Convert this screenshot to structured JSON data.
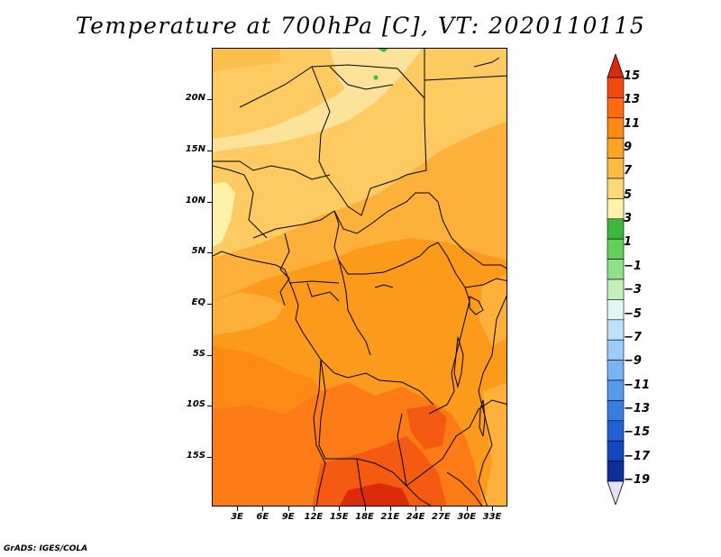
{
  "title": "Temperature at 700hPa [C], VT: 2020110115",
  "credit": "GrADS: IGES/COLA",
  "map": {
    "y_ticks": [
      "20N",
      "15N",
      "10N",
      "5N",
      "EQ",
      "5S",
      "10S",
      "15S"
    ],
    "x_ticks": [
      "3E",
      "6E",
      "9E",
      "12E",
      "15E",
      "18E",
      "21E",
      "24E",
      "27E",
      "30E",
      "33E"
    ]
  },
  "colorbar": {
    "labels": [
      "15",
      "13",
      "11",
      "9",
      "7",
      "5",
      "3",
      "1",
      "−1",
      "−3",
      "−5",
      "−7",
      "−9",
      "−11",
      "−13",
      "−15",
      "−17",
      "−19"
    ],
    "colors": [
      "#dc2b0c",
      "#f2490f",
      "#fc6b12",
      "#fc8a14",
      "#fca425",
      "#fdbb46",
      "#fdda78",
      "#fef2ab",
      "#3cb83c",
      "#62cf5b",
      "#8fe28a",
      "#c2f0b8",
      "#e2f7f4",
      "#bfe2fb",
      "#9ccdf8",
      "#78b4f2",
      "#5799ea",
      "#3a7de0",
      "#2062d3",
      "#1447bb",
      "#0c2f9c",
      "#081b72"
    ]
  }
}
